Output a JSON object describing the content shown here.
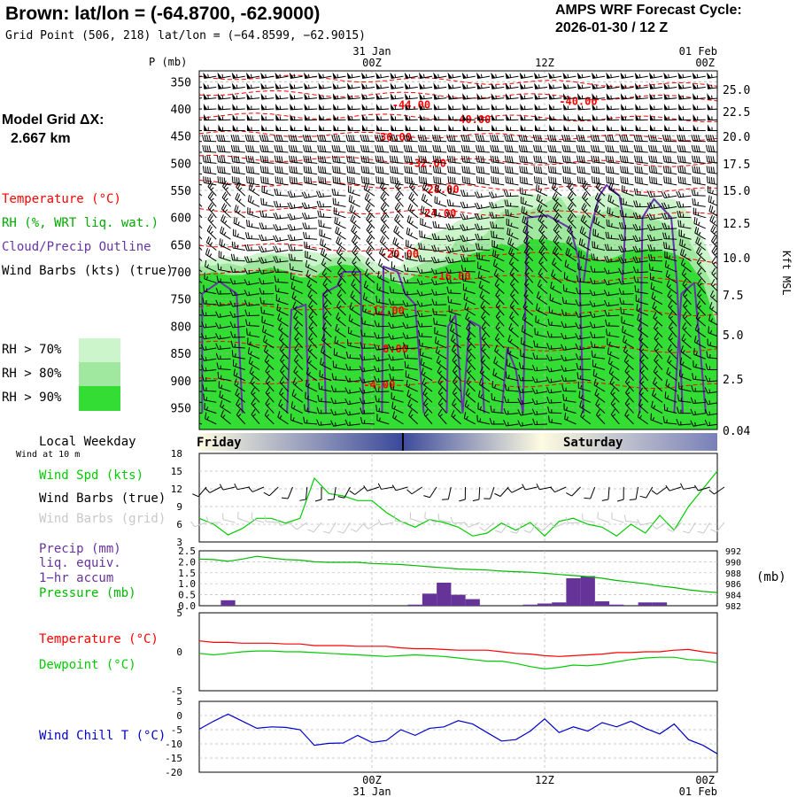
{
  "header": {
    "station_title": "Brown:  lat/lon = (-64.8700, -62.9000)",
    "grid_point": "Grid Point (506, 218) lat/lon = (−64.8599, −62.9015)",
    "forecast_title_line1": "AMPS WRF Forecast Cycle:",
    "forecast_title_line2": "2026-01-30 / 12  Z"
  },
  "model_grid": {
    "label": "Model Grid ΔX:",
    "value": "2.667 km"
  },
  "legend": {
    "temperature": "Temperature (°C)",
    "rh": "RH (%, WRT liq. wat.)",
    "cloud": "Cloud/Precip Outline",
    "wind": "Wind Barbs (kts) (true)",
    "rh_levels": [
      {
        "label": "RH > 70%",
        "color": "#ccf5cc"
      },
      {
        "label": "RH > 80%",
        "color": "#a0e8a0"
      },
      {
        "label": "RH > 90%",
        "color": "#33dd33"
      }
    ]
  },
  "colors": {
    "temperature": "#ff0000",
    "dewpoint": "#00cc00",
    "pressure": "#00bb00",
    "cloud_outline": "#6633aa",
    "precip": "#663399",
    "windchill": "#0000cc",
    "wind_speed": "#00cc00",
    "grid_barbs": "#c8c8c8",
    "rh_label": "#00aa00"
  },
  "time_axis": {
    "top_labels": [
      {
        "line1": "31  Jan",
        "line2": "00Z",
        "hour": 12
      },
      {
        "line1": "",
        "line2": "12Z",
        "hour": 24
      },
      {
        "line1": "01  Feb",
        "line2": "00Z",
        "hour": 36
      }
    ],
    "bottom_labels": [
      {
        "line1": "00Z",
        "line2": "31  Jan",
        "hour": 12
      },
      {
        "line1": "12Z",
        "line2": "",
        "hour": 24
      },
      {
        "line1": "00Z",
        "line2": "01  Feb",
        "hour": 36
      }
    ]
  },
  "weekday": {
    "title": "Local Weekday",
    "subtitle": "Wind at 10 m",
    "day1": "Friday",
    "day2": "Saturday"
  },
  "panel_labels": {
    "wind_spd": "Wind Spd (kts)",
    "wind_barbs_true": "Wind Barbs (true)",
    "wind_barbs_grid": "Wind Barbs (grid)",
    "precip": "Precip (mm)",
    "liq": "liq. equiv.",
    "accum": "1−hr accum",
    "pressure": "Pressure (mb)",
    "pressure_unit": "(mb)",
    "temperature": "Temperature (°C)",
    "dewpoint": "Dewpoint (°C)",
    "windchill": "Wind Chill T (°C)"
  },
  "chart_data": [
    {
      "type": "contour",
      "name": "upper-air cross-section",
      "ylabel": "P (mb)",
      "y2label": "Kft MSL",
      "x_range_hours": [
        0,
        36
      ],
      "pressure_ticks": [
        350,
        400,
        450,
        500,
        550,
        600,
        650,
        700,
        750,
        800,
        850,
        900,
        950
      ],
      "kft_ticks": [
        "25.0",
        "22.5",
        "20.0",
        "17.5",
        "15.0",
        "12.5",
        "10.0",
        "7.5",
        "5.0",
        "2.5",
        "0.04"
      ],
      "isotherm_labels": [
        {
          "text": "-44.00",
          "hour": 13.4,
          "p": 393
        },
        {
          "text": "-40.00",
          "hour": 25.0,
          "p": 386
        },
        {
          "text": "-40.00",
          "hour": 17.6,
          "p": 420
        },
        {
          "text": "-36.00",
          "hour": 12.1,
          "p": 452
        },
        {
          "text": "-32.00",
          "hour": 14.5,
          "p": 500
        },
        {
          "text": "-28.00",
          "hour": 15.4,
          "p": 548
        },
        {
          "text": "-24.00",
          "hour": 15.2,
          "p": 592
        },
        {
          "text": "-20.00",
          "hour": 12.6,
          "p": 667
        },
        {
          "text": "-16.00",
          "hour": 16.2,
          "p": 708
        },
        {
          "text": "-12.00",
          "hour": 11.6,
          "p": 772
        },
        {
          "text": "-8.00",
          "hour": 12.3,
          "p": 842
        },
        {
          "text": "-4.00",
          "hour": 11.4,
          "p": 908
        }
      ],
      "rh70_top_p": [
        680,
        676,
        672,
        675,
        666,
        664,
        666,
        660,
        664,
        668,
        664,
        664,
        680,
        690,
        690,
        650,
        632,
        622,
        606,
        600,
        578,
        566,
        560,
        556,
        560,
        562,
        560,
        562,
        556,
        554,
        556,
        560,
        566,
        566,
        590,
        640,
        700
      ],
      "rh80_top_p": [
        690,
        688,
        684,
        690,
        676,
        668,
        672,
        680,
        690,
        676,
        672,
        676,
        698,
        700,
        700,
        690,
        680,
        676,
        636,
        650,
        628,
        590,
        580,
        586,
        574,
        560,
        596,
        596,
        590,
        580,
        584,
        600,
        606,
        620,
        640,
        690,
        740
      ],
      "rh90_top_p": [
        706,
        700,
        706,
        706,
        698,
        692,
        698,
        710,
        710,
        690,
        686,
        690,
        706,
        710,
        724,
        706,
        698,
        690,
        680,
        666,
        660,
        648,
        656,
        640,
        640,
        646,
        648,
        666,
        682,
        672,
        660,
        658,
        660,
        666,
        680,
        720,
        800
      ]
    },
    {
      "type": "line",
      "name": "wind speed",
      "ylabel": "Wind Spd (kts)",
      "ylim": [
        3,
        18
      ],
      "yticks": [
        3,
        6,
        9,
        12,
        15,
        18
      ],
      "x_hours": [
        0,
        1,
        2,
        3,
        4,
        5,
        6,
        7,
        8,
        9,
        10,
        11,
        12,
        13,
        14,
        15,
        16,
        17,
        18,
        19,
        20,
        21,
        22,
        23,
        24,
        25,
        26,
        27,
        28,
        29,
        30,
        31,
        32,
        33,
        34,
        35,
        36
      ],
      "values": [
        7.0,
        6.0,
        4.2,
        5.3,
        7.0,
        7.0,
        6.2,
        7.0,
        13.8,
        11.2,
        10.8,
        10.0,
        10.0,
        8.0,
        6.5,
        5.5,
        6.8,
        6.3,
        5.5,
        4.0,
        4.5,
        6.2,
        5.0,
        6.3,
        4.0,
        6.5,
        7.0,
        6.0,
        5.5,
        4.0,
        6.0,
        4.5,
        7.5,
        5.0,
        9.0,
        12.0,
        15.0
      ]
    },
    {
      "type": "bar+line",
      "name": "precip and pressure",
      "precip_ylim": [
        0,
        2.5
      ],
      "precip_yticks": [
        0,
        0.5,
        1.0,
        1.5,
        2.0,
        2.5
      ],
      "pressure_ylim": [
        982,
        992
      ],
      "pressure_yticks": [
        982,
        984,
        986,
        988,
        990,
        992
      ],
      "x_hours": [
        0,
        1,
        2,
        3,
        4,
        5,
        6,
        7,
        8,
        9,
        10,
        11,
        12,
        13,
        14,
        15,
        16,
        17,
        18,
        19,
        20,
        21,
        22,
        23,
        24,
        25,
        26,
        27,
        28,
        29,
        30,
        31,
        32,
        33,
        34,
        35,
        36
      ],
      "precip": [
        0,
        0,
        0.25,
        0,
        0,
        0,
        0,
        0,
        0,
        0,
        0,
        0,
        0,
        0,
        0,
        0.05,
        0.55,
        1.05,
        0.5,
        0.3,
        0,
        0,
        0,
        0.05,
        0.1,
        0.15,
        1.25,
        1.35,
        0.2,
        0.05,
        0,
        0.15,
        0.15,
        0,
        0,
        0,
        0
      ],
      "pressure": [
        990.5,
        990.4,
        990.1,
        990.5,
        991.0,
        990.7,
        990.4,
        990.3,
        990.0,
        989.9,
        989.9,
        989.9,
        989.7,
        989.6,
        989.5,
        989.3,
        989.1,
        988.9,
        988.7,
        988.6,
        988.5,
        988.3,
        988.2,
        988.1,
        987.9,
        987.7,
        987.5,
        987.3,
        987.0,
        986.6,
        986.3,
        986.0,
        985.6,
        985.3,
        984.9,
        984.6,
        984.4
      ]
    },
    {
      "type": "line",
      "name": "temperature and dewpoint",
      "ylim": [
        -5,
        5
      ],
      "yticks": [
        -5,
        0,
        5
      ],
      "x_hours": [
        0,
        1,
        2,
        3,
        4,
        5,
        6,
        7,
        8,
        9,
        10,
        11,
        12,
        13,
        14,
        15,
        16,
        17,
        18,
        19,
        20,
        21,
        22,
        23,
        24,
        25,
        26,
        27,
        28,
        29,
        30,
        31,
        32,
        33,
        34,
        35,
        36
      ],
      "series": [
        {
          "name": "Temperature",
          "color": "#ff0000",
          "values": [
            1.4,
            1.2,
            1.2,
            1.1,
            1.1,
            1.1,
            1.0,
            1.0,
            0.8,
            0.8,
            0.8,
            0.7,
            0.7,
            0.7,
            0.5,
            0.4,
            0.4,
            0.3,
            0.2,
            0.2,
            0.2,
            0.0,
            -0.2,
            -0.3,
            -0.5,
            -0.6,
            -0.5,
            -0.4,
            -0.3,
            -0.1,
            -0.1,
            0.0,
            0.0,
            0.2,
            0.3,
            0.0,
            -0.2
          ]
        },
        {
          "name": "Dewpoint",
          "color": "#00cc00",
          "values": [
            -0.2,
            -0.4,
            -0.2,
            0.0,
            0.1,
            0.1,
            0.0,
            0.0,
            -0.1,
            -0.2,
            -0.3,
            -0.4,
            -0.5,
            -0.6,
            -0.5,
            -0.4,
            -0.5,
            -0.6,
            -0.8,
            -1.0,
            -1.2,
            -1.2,
            -1.5,
            -1.9,
            -2.2,
            -2.0,
            -1.7,
            -1.8,
            -1.6,
            -1.3,
            -1.0,
            -0.8,
            -0.7,
            -0.7,
            -1.0,
            -1.1,
            -1.4
          ]
        }
      ]
    },
    {
      "type": "line",
      "name": "wind chill",
      "ylabel": "Wind Chill T (°C)",
      "ylim": [
        -20,
        5
      ],
      "yticks": [
        -20,
        -15,
        -10,
        -5,
        0,
        5
      ],
      "x_hours": [
        0,
        1,
        2,
        3,
        4,
        5,
        6,
        7,
        8,
        9,
        10,
        11,
        12,
        13,
        14,
        15,
        16,
        17,
        18,
        19,
        20,
        21,
        22,
        23,
        24,
        25,
        26,
        27,
        28,
        29,
        30,
        31,
        32,
        33,
        34,
        35,
        36
      ],
      "values": [
        -4.8,
        -2.0,
        0.5,
        -2.0,
        -4.5,
        -4.0,
        -4.2,
        -5.0,
        -10.5,
        -9.8,
        -9.7,
        -7.0,
        -9.5,
        -8.8,
        -5.0,
        -7.0,
        -4.5,
        -4.0,
        -1.8,
        -3.0,
        -6.0,
        -9.0,
        -8.5,
        -5.5,
        -1.2,
        -6.0,
        -4.0,
        -5.5,
        -2.5,
        -4.0,
        -2.0,
        -4.5,
        -6.5,
        -3.0,
        -8.5,
        -10.5,
        -13.5
      ]
    }
  ]
}
